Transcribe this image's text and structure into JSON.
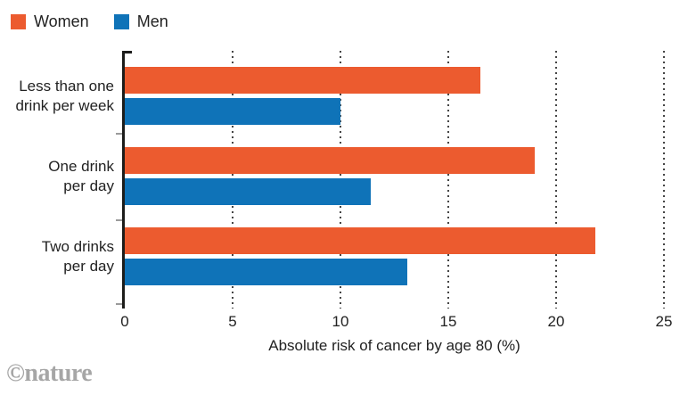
{
  "legend": {
    "items": [
      {
        "label": "Women",
        "color": "#EC5B2F"
      },
      {
        "label": "Men",
        "color": "#0F73B8"
      }
    ]
  },
  "chart_data": {
    "type": "bar",
    "orientation": "horizontal",
    "categories": [
      "Less than one drink per week",
      "One drink per day",
      "Two drinks per day"
    ],
    "category_lines": [
      [
        "Less than one",
        "drink per week"
      ],
      [
        "One drink",
        "per day"
      ],
      [
        "Two drinks",
        "per day"
      ]
    ],
    "series": [
      {
        "name": "Women",
        "color": "#EC5B2F",
        "values": [
          16.5,
          19.0,
          21.8
        ]
      },
      {
        "name": "Men",
        "color": "#0F73B8",
        "values": [
          10.0,
          11.4,
          13.1
        ]
      }
    ],
    "xlabel": "Absolute risk of cancer by age 80 (%)",
    "xlim": [
      0,
      25
    ],
    "xticks": [
      0,
      5,
      10,
      15,
      20,
      25
    ],
    "grid": "dotted-vertical",
    "legend_position": "top-left",
    "axis_color": "#1d1d1b",
    "gridline_color": "#454545"
  },
  "footer": {
    "credit": "©nature"
  }
}
